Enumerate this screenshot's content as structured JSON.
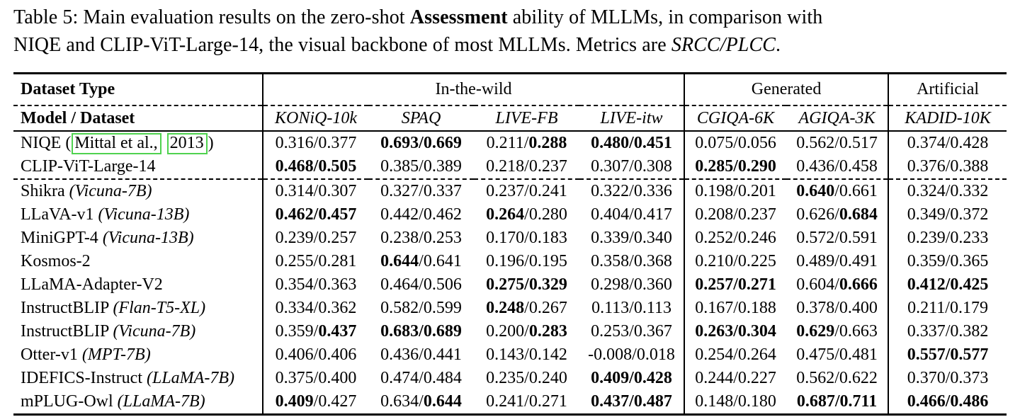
{
  "colors": {
    "text": "#000000",
    "background": "#ffffff",
    "rule": "#000000",
    "citation_box": "#4fd24f"
  },
  "caption": {
    "seg1": "Table 5: Main evaluation results on the zero-shot ",
    "seg2_bold": "Assessment",
    "seg3a": " ability of MLLMs, in comparison with",
    "seg3b": "NIQE and CLIP-ViT-Large-14, the visual backbone of most MLLMs. Metrics are ",
    "seg4_italic": "SRCC/PLCC",
    "seg5": "."
  },
  "header": {
    "dataset_type_label": "Dataset Type",
    "model_dataset_label": "Model / Dataset",
    "groups": [
      {
        "label": "In-the-wild",
        "span": 4
      },
      {
        "label": "Generated",
        "span": 2
      },
      {
        "label": "Artificial",
        "span": 1
      }
    ],
    "datasets": [
      "KONiQ-10k",
      "SPAQ",
      "LIVE-FB",
      "LIVE-itw",
      "CGIQA-6K",
      "AGIQA-3K",
      "KADID-10K"
    ]
  },
  "metric_format": "SRCC/PLCC",
  "rows": [
    {
      "model": "NIQE",
      "variant": "",
      "citation": [
        "Mittal et al.,",
        "2013"
      ],
      "dashed_below": false,
      "cells": [
        [
          "0.316",
          0,
          "0.377",
          0
        ],
        [
          "0.693",
          1,
          "0.669",
          1
        ],
        [
          "0.211",
          0,
          "0.288",
          1
        ],
        [
          "0.480",
          1,
          "0.451",
          1
        ],
        [
          "0.075",
          0,
          "0.056",
          0
        ],
        [
          "0.562",
          0,
          "0.517",
          0
        ],
        [
          "0.374",
          0,
          "0.428",
          0
        ]
      ]
    },
    {
      "model": "CLIP-ViT-Large-14",
      "variant": "",
      "citation": null,
      "dashed_below": true,
      "cells": [
        [
          "0.468",
          1,
          "0.505",
          1
        ],
        [
          "0.385",
          0,
          "0.389",
          0
        ],
        [
          "0.218",
          0,
          "0.237",
          0
        ],
        [
          "0.307",
          0,
          "0.308",
          0
        ],
        [
          "0.285",
          1,
          "0.290",
          1
        ],
        [
          "0.436",
          0,
          "0.458",
          0
        ],
        [
          "0.376",
          0,
          "0.388",
          0
        ]
      ]
    },
    {
      "model": "Shikra",
      "variant": "(Vicuna-7B)",
      "citation": null,
      "dashed_below": false,
      "cells": [
        [
          "0.314",
          0,
          "0.307",
          0
        ],
        [
          "0.327",
          0,
          "0.337",
          0
        ],
        [
          "0.237",
          0,
          "0.241",
          0
        ],
        [
          "0.322",
          0,
          "0.336",
          0
        ],
        [
          "0.198",
          0,
          "0.201",
          0
        ],
        [
          "0.640",
          1,
          "0.661",
          0
        ],
        [
          "0.324",
          0,
          "0.332",
          0
        ]
      ]
    },
    {
      "model": "LLaVA-v1",
      "variant": "(Vicuna-13B)",
      "citation": null,
      "dashed_below": false,
      "cells": [
        [
          "0.462",
          1,
          "0.457",
          1
        ],
        [
          "0.442",
          0,
          "0.462",
          0
        ],
        [
          "0.264",
          1,
          "0.280",
          0
        ],
        [
          "0.404",
          0,
          "0.417",
          0
        ],
        [
          "0.208",
          0,
          "0.237",
          0
        ],
        [
          "0.626",
          0,
          "0.684",
          1
        ],
        [
          "0.349",
          0,
          "0.372",
          0
        ]
      ]
    },
    {
      "model": "MiniGPT-4",
      "variant": "(Vicuna-13B)",
      "citation": null,
      "dashed_below": false,
      "cells": [
        [
          "0.239",
          0,
          "0.257",
          0
        ],
        [
          "0.238",
          0,
          "0.253",
          0
        ],
        [
          "0.170",
          0,
          "0.183",
          0
        ],
        [
          "0.339",
          0,
          "0.340",
          0
        ],
        [
          "0.252",
          0,
          "0.246",
          0
        ],
        [
          "0.572",
          0,
          "0.591",
          0
        ],
        [
          "0.239",
          0,
          "0.233",
          0
        ]
      ]
    },
    {
      "model": "Kosmos-2",
      "variant": "",
      "citation": null,
      "dashed_below": false,
      "cells": [
        [
          "0.255",
          0,
          "0.281",
          0
        ],
        [
          "0.644",
          1,
          "0.641",
          0
        ],
        [
          "0.196",
          0,
          "0.195",
          0
        ],
        [
          "0.358",
          0,
          "0.368",
          0
        ],
        [
          "0.210",
          0,
          "0.225",
          0
        ],
        [
          "0.489",
          0,
          "0.491",
          0
        ],
        [
          "0.359",
          0,
          "0.365",
          0
        ]
      ]
    },
    {
      "model": "LLaMA-Adapter-V2",
      "variant": "",
      "citation": null,
      "dashed_below": false,
      "cells": [
        [
          "0.354",
          0,
          "0.363",
          0
        ],
        [
          "0.464",
          0,
          "0.506",
          0
        ],
        [
          "0.275",
          1,
          "0.329",
          1
        ],
        [
          "0.298",
          0,
          "0.360",
          0
        ],
        [
          "0.257",
          1,
          "0.271",
          1
        ],
        [
          "0.604",
          0,
          "0.666",
          1
        ],
        [
          "0.412",
          1,
          "0.425",
          1
        ]
      ]
    },
    {
      "model": "InstructBLIP",
      "variant": "(Flan-T5-XL)",
      "citation": null,
      "dashed_below": false,
      "cells": [
        [
          "0.334",
          0,
          "0.362",
          0
        ],
        [
          "0.582",
          0,
          "0.599",
          0
        ],
        [
          "0.248",
          1,
          "0.267",
          0
        ],
        [
          "0.113",
          0,
          "0.113",
          0
        ],
        [
          "0.167",
          0,
          "0.188",
          0
        ],
        [
          "0.378",
          0,
          "0.400",
          0
        ],
        [
          "0.211",
          0,
          "0.179",
          0
        ]
      ]
    },
    {
      "model": "InstructBLIP",
      "variant": "(Vicuna-7B)",
      "citation": null,
      "dashed_below": false,
      "cells": [
        [
          "0.359",
          0,
          "0.437",
          1
        ],
        [
          "0.683",
          1,
          "0.689",
          1
        ],
        [
          "0.200",
          0,
          "0.283",
          1
        ],
        [
          "0.253",
          0,
          "0.367",
          0
        ],
        [
          "0.263",
          1,
          "0.304",
          1
        ],
        [
          "0.629",
          1,
          "0.663",
          0
        ],
        [
          "0.337",
          0,
          "0.382",
          0
        ]
      ]
    },
    {
      "model": "Otter-v1",
      "variant": "(MPT-7B)",
      "citation": null,
      "dashed_below": false,
      "cells": [
        [
          "0.406",
          0,
          "0.406",
          0
        ],
        [
          "0.436",
          0,
          "0.441",
          0
        ],
        [
          "0.143",
          0,
          "0.142",
          0
        ],
        [
          "-0.008",
          0,
          "0.018",
          0
        ],
        [
          "0.254",
          0,
          "0.264",
          0
        ],
        [
          "0.475",
          0,
          "0.481",
          0
        ],
        [
          "0.557",
          1,
          "0.577",
          1
        ]
      ]
    },
    {
      "model": "IDEFICS-Instruct",
      "variant": "(LLaMA-7B)",
      "citation": null,
      "dashed_below": false,
      "cells": [
        [
          "0.375",
          0,
          "0.400",
          0
        ],
        [
          "0.474",
          0,
          "0.484",
          0
        ],
        [
          "0.235",
          0,
          "0.240",
          0
        ],
        [
          "0.409",
          1,
          "0.428",
          1
        ],
        [
          "0.244",
          0,
          "0.227",
          0
        ],
        [
          "0.562",
          0,
          "0.622",
          0
        ],
        [
          "0.370",
          0,
          "0.373",
          0
        ]
      ]
    },
    {
      "model": "mPLUG-Owl",
      "variant": "(LLaMA-7B)",
      "citation": null,
      "dashed_below": false,
      "cells": [
        [
          "0.409",
          1,
          "0.427",
          0
        ],
        [
          "0.634",
          0,
          "0.644",
          1
        ],
        [
          "0.241",
          0,
          "0.271",
          0
        ],
        [
          "0.437",
          1,
          "0.487",
          1
        ],
        [
          "0.148",
          0,
          "0.180",
          0
        ],
        [
          "0.687",
          1,
          "0.711",
          1
        ],
        [
          "0.466",
          1,
          "0.486",
          1
        ]
      ]
    }
  ]
}
